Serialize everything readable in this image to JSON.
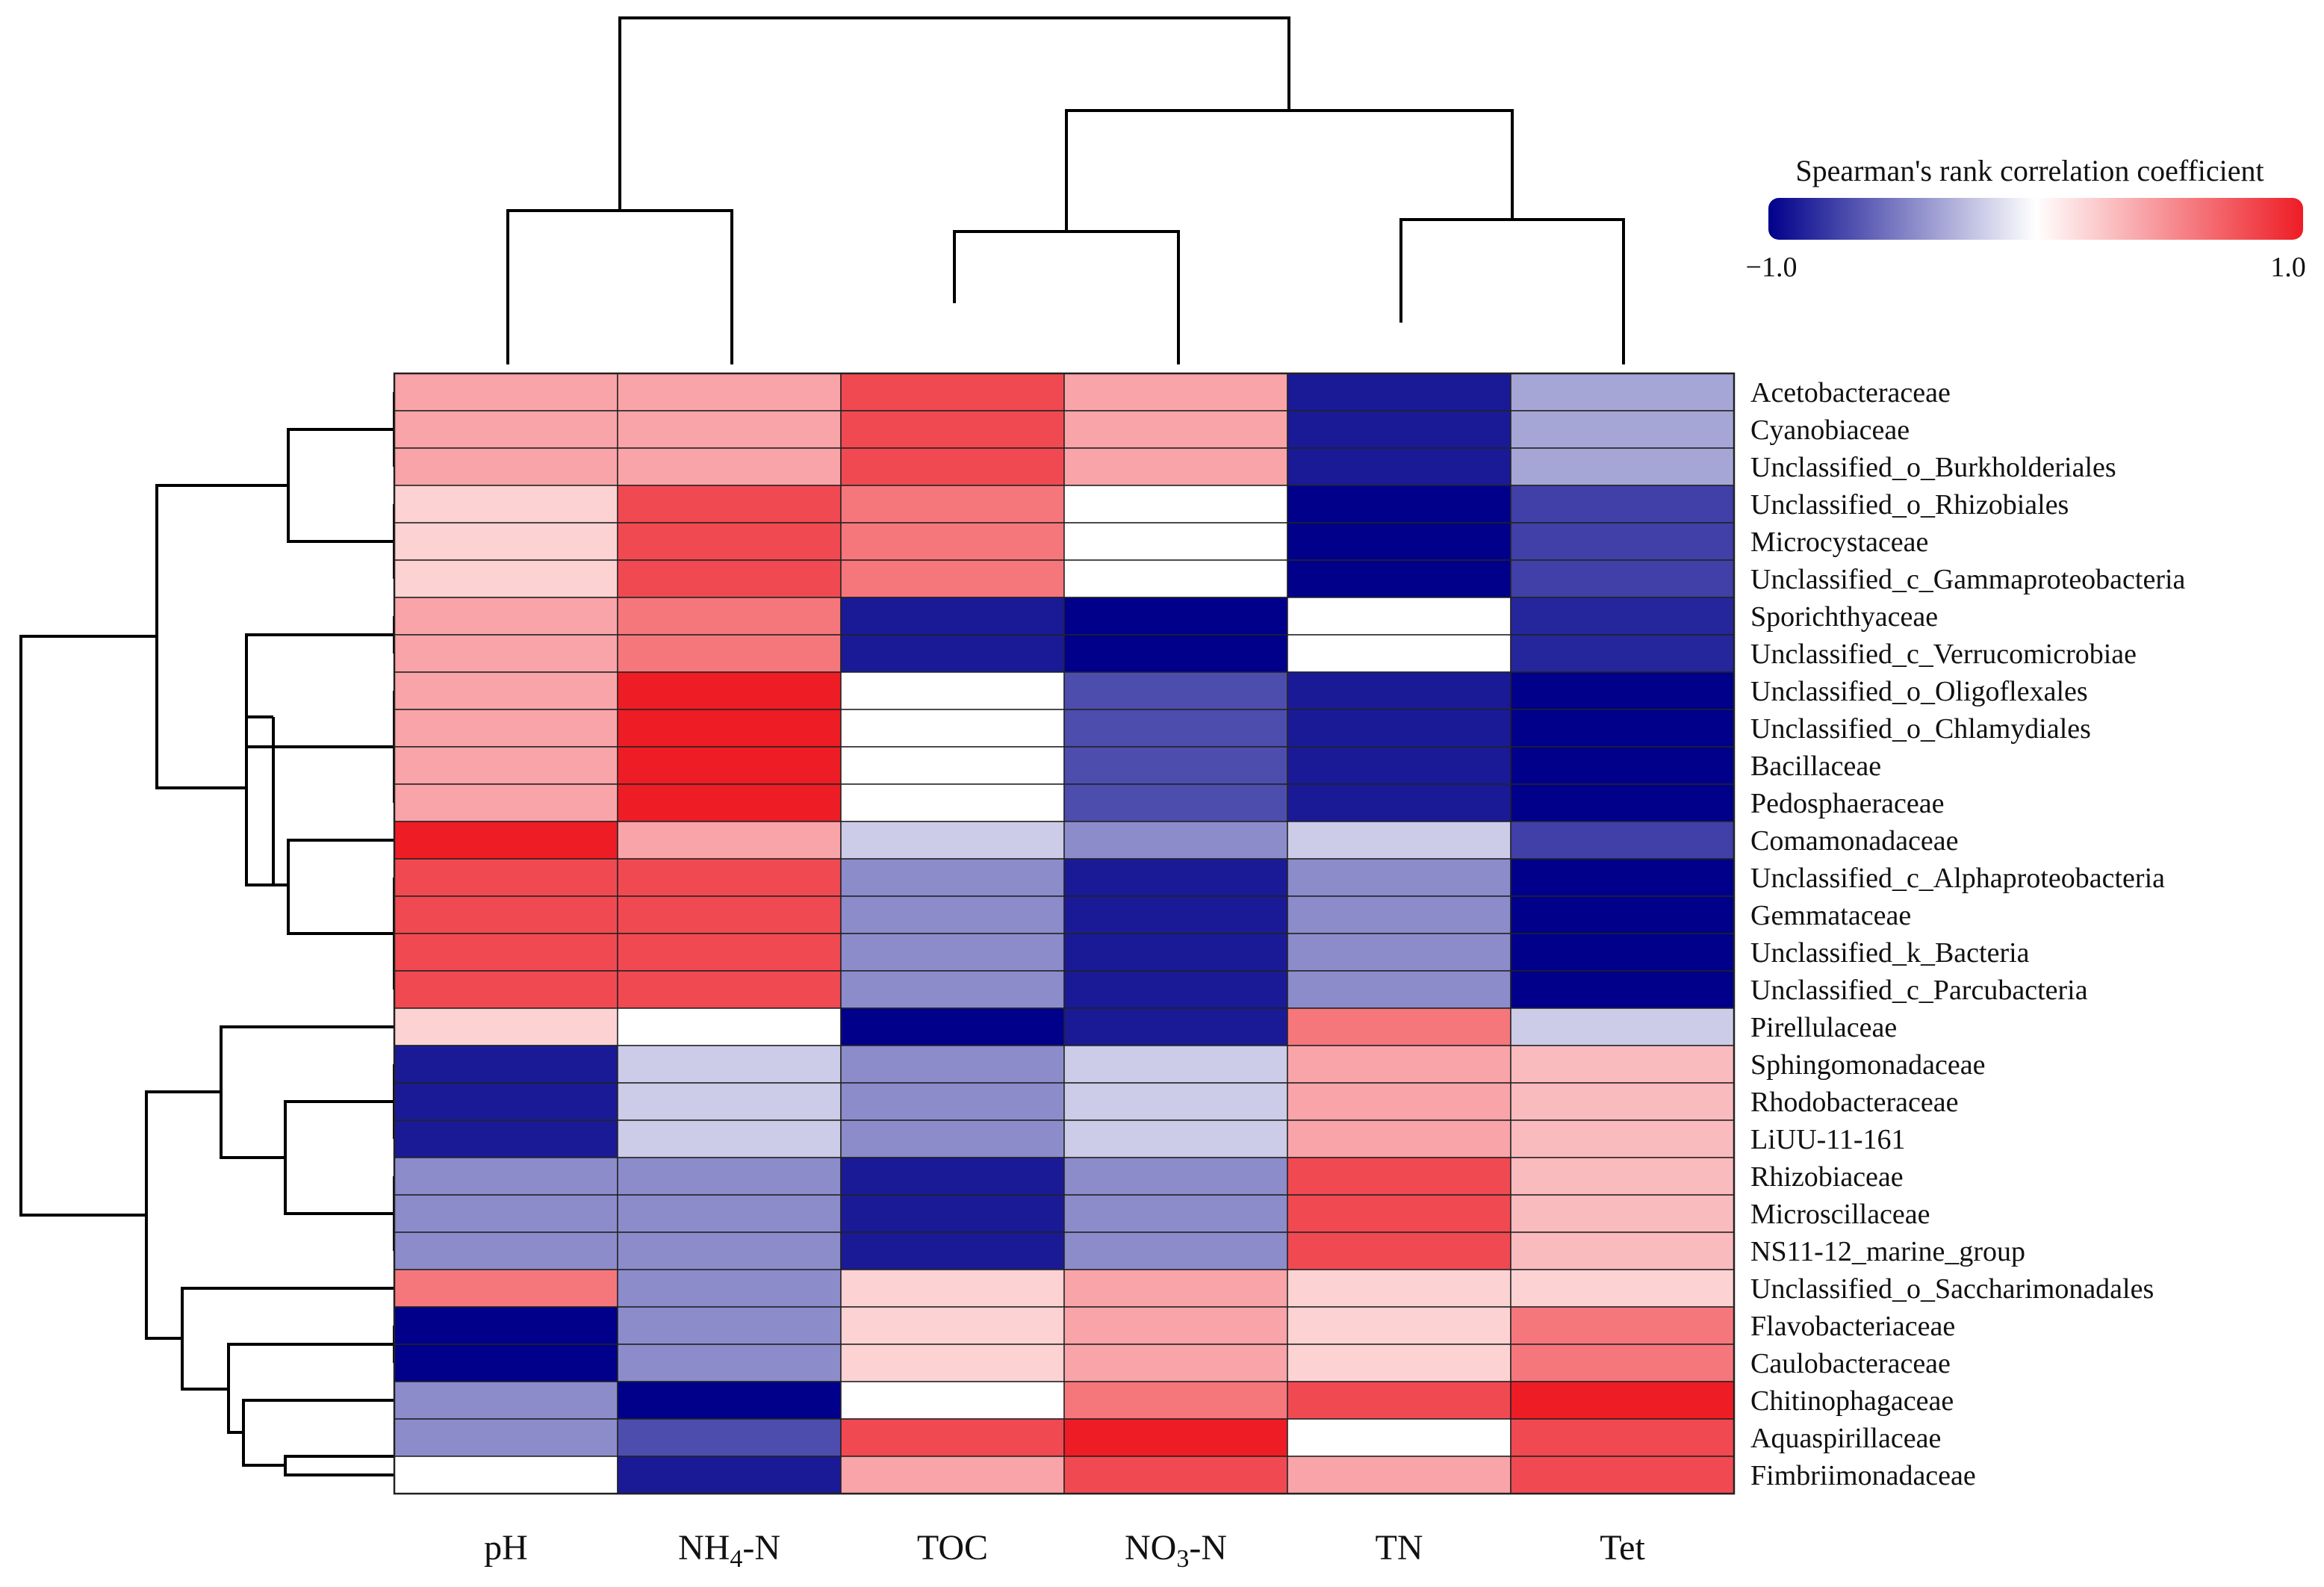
{
  "chart_data": {
    "type": "heatmap",
    "title": "",
    "legend": {
      "title": "Spearman's rank correlation coefficient",
      "min_label": "−1.0",
      "max_label": "1.0",
      "range": [
        -1.0,
        1.0
      ],
      "colors": [
        "#00008B",
        "#FFFFFF",
        "#EE1C25"
      ],
      "placement": "top-right"
    },
    "columns": [
      "pH",
      "NH4-N",
      "TOC",
      "NO3-N",
      "TN",
      "Tet"
    ],
    "column_labels": [
      {
        "main": "pH",
        "sub": "",
        "tail": ""
      },
      {
        "main": "NH",
        "sub": "4",
        "tail": "-N"
      },
      {
        "main": "TOC",
        "sub": "",
        "tail": ""
      },
      {
        "main": "NO",
        "sub": "3",
        "tail": "-N"
      },
      {
        "main": "TN",
        "sub": "",
        "tail": ""
      },
      {
        "main": "Tet",
        "sub": "",
        "tail": ""
      }
    ],
    "rows": [
      "Acetobacteraceae",
      "Cyanobiaceae",
      "Unclassified_o_Burkholderiales",
      "Unclassified_o_Rhizobiales",
      "Microcystaceae",
      "Unclassified_c_Gammaproteobacteria",
      "Sporichthyaceae",
      "Unclassified_c_Verrucomicrobiae",
      "Unclassified_o_Oligoflexales",
      "Unclassified_o_Chlamydiales",
      "Bacillaceae",
      "Pedosphaeraceae",
      "Comamonadaceae",
      "Unclassified_c_Alphaproteobacteria",
      "Gemmataceae",
      "Unclassified_k_Bacteria",
      "Unclassified_c_Parcubacteria",
      "Pirellulaceae",
      "Sphingomonadaceae",
      "Rhodobacteraceae",
      "LiUU-11-161",
      "Rhizobiaceae",
      "Microscillaceae",
      "NS11-12_marine_group",
      "Unclassified_o_Saccharimonadales",
      "Flavobacteriaceae",
      "Caulobacteraceae",
      "Chitinophagaceae",
      "Aquaspirillaceae",
      "Fimbriimonadaceae"
    ],
    "values": [
      [
        0.4,
        0.4,
        0.8,
        0.4,
        -0.9,
        -0.35
      ],
      [
        0.4,
        0.4,
        0.8,
        0.4,
        -0.9,
        -0.35
      ],
      [
        0.4,
        0.4,
        0.8,
        0.4,
        -0.9,
        -0.35
      ],
      [
        0.2,
        0.8,
        0.6,
        0.0,
        -1.0,
        -0.75
      ],
      [
        0.2,
        0.8,
        0.6,
        0.0,
        -1.0,
        -0.75
      ],
      [
        0.2,
        0.8,
        0.6,
        0.0,
        -1.0,
        -0.75
      ],
      [
        0.4,
        0.6,
        -0.9,
        -1.0,
        0.0,
        -0.85
      ],
      [
        0.4,
        0.6,
        -0.9,
        -1.0,
        0.0,
        -0.85
      ],
      [
        0.4,
        1.0,
        0.0,
        -0.7,
        -0.9,
        -1.0
      ],
      [
        0.4,
        1.0,
        0.0,
        -0.7,
        -0.9,
        -1.0
      ],
      [
        0.4,
        1.0,
        0.0,
        -0.7,
        -0.9,
        -1.0
      ],
      [
        0.4,
        1.0,
        0.0,
        -0.7,
        -0.9,
        -1.0
      ],
      [
        1.0,
        0.4,
        -0.2,
        -0.45,
        -0.2,
        -0.75
      ],
      [
        0.8,
        0.8,
        -0.45,
        -0.9,
        -0.45,
        -1.0
      ],
      [
        0.8,
        0.8,
        -0.45,
        -0.9,
        -0.45,
        -1.0
      ],
      [
        0.8,
        0.8,
        -0.45,
        -0.9,
        -0.45,
        -1.0
      ],
      [
        0.8,
        0.8,
        -0.45,
        -0.9,
        -0.45,
        -1.0
      ],
      [
        0.2,
        0.0,
        -1.0,
        -0.9,
        0.6,
        -0.2
      ],
      [
        -0.9,
        -0.2,
        -0.45,
        -0.2,
        0.4,
        0.3
      ],
      [
        -0.9,
        -0.2,
        -0.45,
        -0.2,
        0.4,
        0.3
      ],
      [
        -0.9,
        -0.2,
        -0.45,
        -0.2,
        0.4,
        0.3
      ],
      [
        -0.45,
        -0.45,
        -0.9,
        -0.45,
        0.8,
        0.3
      ],
      [
        -0.45,
        -0.45,
        -0.9,
        -0.45,
        0.8,
        0.3
      ],
      [
        -0.45,
        -0.45,
        -0.9,
        -0.45,
        0.8,
        0.3
      ],
      [
        0.6,
        -0.45,
        0.2,
        0.4,
        0.2,
        0.2
      ],
      [
        -1.0,
        -0.45,
        0.2,
        0.4,
        0.2,
        0.6
      ],
      [
        -1.0,
        -0.45,
        0.2,
        0.4,
        0.2,
        0.6
      ],
      [
        -0.45,
        -1.0,
        0.0,
        0.6,
        0.8,
        1.0
      ],
      [
        -0.45,
        -0.7,
        0.8,
        1.0,
        0.0,
        0.8
      ],
      [
        0.0,
        -0.9,
        0.4,
        0.8,
        0.4,
        0.8
      ]
    ]
  }
}
